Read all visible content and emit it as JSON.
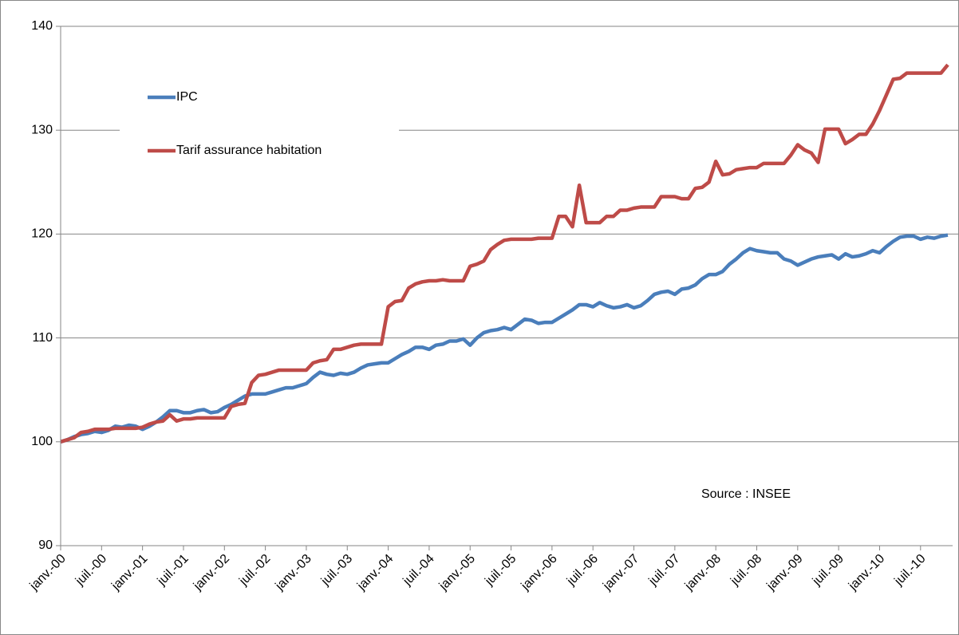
{
  "chart_data": {
    "type": "line",
    "categories": [
      "janv.-00",
      null,
      null,
      null,
      null,
      null,
      "juil.-00",
      null,
      null,
      null,
      null,
      null,
      "janv.-01",
      null,
      null,
      null,
      null,
      null,
      "juil.-01",
      null,
      null,
      null,
      null,
      null,
      "janv.-02",
      null,
      null,
      null,
      null,
      null,
      "juil.-02",
      null,
      null,
      null,
      null,
      null,
      "janv.-03",
      null,
      null,
      null,
      null,
      null,
      "juil.-03",
      null,
      null,
      null,
      null,
      null,
      "janv.-04",
      null,
      null,
      null,
      null,
      null,
      "juil.-04",
      null,
      null,
      null,
      null,
      null,
      "janv.-05",
      null,
      null,
      null,
      null,
      null,
      "juil.-05",
      null,
      null,
      null,
      null,
      null,
      "janv.-06",
      null,
      null,
      null,
      null,
      null,
      "juil.-06",
      null,
      null,
      null,
      null,
      null,
      "janv.-07",
      null,
      null,
      null,
      null,
      null,
      "juil.-07",
      null,
      null,
      null,
      null,
      null,
      "janv.-08",
      null,
      null,
      null,
      null,
      null,
      "juil.-08",
      null,
      null,
      null,
      null,
      null,
      "janv.-09",
      null,
      null,
      null,
      null,
      null,
      "juil.-09",
      null,
      null,
      null,
      null,
      null,
      "janv.-10",
      null,
      null,
      null,
      null,
      null,
      "juil.-10",
      null,
      null,
      null,
      null
    ],
    "series": [
      {
        "name": "IPC",
        "color": "#4a7ebb",
        "values": [
          100.0,
          100.2,
          100.5,
          100.7,
          100.8,
          101.0,
          100.9,
          101.1,
          101.5,
          101.4,
          101.6,
          101.5,
          101.2,
          101.5,
          101.9,
          102.4,
          103.0,
          103.0,
          102.8,
          102.8,
          103.0,
          103.1,
          102.8,
          102.9,
          103.3,
          103.6,
          104.0,
          104.4,
          104.6,
          104.6,
          104.6,
          104.8,
          105.0,
          105.2,
          105.2,
          105.4,
          105.6,
          106.2,
          106.7,
          106.5,
          106.4,
          106.6,
          106.5,
          106.7,
          107.1,
          107.4,
          107.5,
          107.6,
          107.6,
          108.0,
          108.4,
          108.7,
          109.1,
          109.1,
          108.9,
          109.3,
          109.4,
          109.7,
          109.7,
          109.9,
          109.3,
          110.0,
          110.5,
          110.7,
          110.8,
          111.0,
          110.8,
          111.3,
          111.8,
          111.7,
          111.4,
          111.5,
          111.5,
          111.9,
          112.3,
          112.7,
          113.2,
          113.2,
          113.0,
          113.4,
          113.1,
          112.9,
          113.0,
          113.2,
          112.9,
          113.1,
          113.6,
          114.2,
          114.4,
          114.5,
          114.2,
          114.7,
          114.8,
          115.1,
          115.7,
          116.1,
          116.1,
          116.4,
          117.1,
          117.6,
          118.2,
          118.6,
          118.4,
          118.3,
          118.2,
          118.2,
          117.6,
          117.4,
          117.0,
          117.3,
          117.6,
          117.8,
          117.9,
          118.0,
          117.6,
          118.1,
          117.8,
          117.9,
          118.1,
          118.4,
          118.2,
          118.8,
          119.3,
          119.7,
          119.8,
          119.8,
          119.5,
          119.7,
          119.6,
          119.8,
          119.9
        ]
      },
      {
        "name": "Tarif assurance habitation",
        "color": "#be4b48",
        "values": [
          100.0,
          100.2,
          100.4,
          100.9,
          101.0,
          101.2,
          101.2,
          101.2,
          101.3,
          101.3,
          101.3,
          101.3,
          101.4,
          101.7,
          101.9,
          102.0,
          102.6,
          102.0,
          102.2,
          102.2,
          102.3,
          102.3,
          102.3,
          102.3,
          102.3,
          103.4,
          103.6,
          103.7,
          105.7,
          106.4,
          106.5,
          106.7,
          106.9,
          106.9,
          106.9,
          106.9,
          106.9,
          107.6,
          107.8,
          107.9,
          108.9,
          108.9,
          109.1,
          109.3,
          109.4,
          109.4,
          109.4,
          109.4,
          113.0,
          113.5,
          113.6,
          114.8,
          115.2,
          115.4,
          115.5,
          115.5,
          115.6,
          115.5,
          115.5,
          115.5,
          116.9,
          117.1,
          117.4,
          118.5,
          119.0,
          119.4,
          119.5,
          119.5,
          119.5,
          119.5,
          119.6,
          119.6,
          119.6,
          121.7,
          121.7,
          120.7,
          124.7,
          121.1,
          121.1,
          121.1,
          121.7,
          121.7,
          122.3,
          122.3,
          122.5,
          122.6,
          122.6,
          122.6,
          123.6,
          123.6,
          123.6,
          123.4,
          123.4,
          124.4,
          124.5,
          125.0,
          127.0,
          125.7,
          125.8,
          126.2,
          126.3,
          126.4,
          126.4,
          126.8,
          126.8,
          126.8,
          126.8,
          127.6,
          128.6,
          128.1,
          127.8,
          126.9,
          130.1,
          130.1,
          130.1,
          128.7,
          129.1,
          129.6,
          129.6,
          130.6,
          131.9,
          133.4,
          134.9,
          135.0,
          135.5,
          135.5,
          135.5,
          135.5,
          135.5,
          135.5,
          136.3
        ]
      }
    ],
    "ylim": [
      90,
      140
    ],
    "yticks": [
      90,
      100,
      110,
      120,
      130,
      140
    ],
    "grid": true,
    "legend": "upper left",
    "annotation": "Source : INSEE"
  }
}
